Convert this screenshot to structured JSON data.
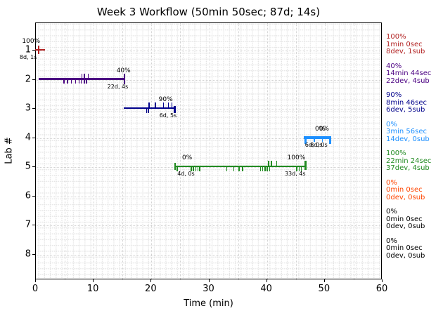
{
  "title": "Week 3 Workflow (50min 50sec; 87d; 14s)",
  "chart_data": {
    "type": "gantt",
    "title": "Week 3 Workflow (50min 50sec; 87d; 14s)",
    "xlabel": "Time (min)",
    "ylabel": "Lab #",
    "xlim": [
      0,
      60
    ],
    "x_ticks": [
      0,
      10,
      20,
      30,
      40,
      50,
      60
    ],
    "x_minor_step": 5,
    "y_labels": [
      1,
      2,
      3,
      4,
      5,
      6,
      7,
      8
    ],
    "grid": "fine dotted",
    "legend_position": "right of axes, one colored block per lab",
    "series": [
      {
        "lab": 1,
        "color": "#b22222",
        "start": 0,
        "end": 1.65,
        "thickness": 2.5,
        "caps": [
          {
            "x": 0.62,
            "up": 5,
            "down": 5,
            "w": 2.5
          }
        ],
        "ticks_up": [],
        "ticks_down": [],
        "annotations": [
          {
            "text": "100%",
            "x": -0.7,
            "side": "above"
          },
          {
            "text": "8d, 1s",
            "x": -1.2,
            "side": "below"
          }
        ]
      },
      {
        "lab": 2,
        "color": "#4b0082",
        "start": 0.6,
        "end": 15.5,
        "thickness": 2.5,
        "caps": [
          {
            "x": 15.45,
            "up": 6,
            "down": 6,
            "w": 2.5
          }
        ],
        "ticks_up": [
          8.0,
          8.4,
          9.1
        ],
        "ticks_down": [
          4.9,
          5.5,
          6.2,
          6.9,
          7.5,
          7.9,
          8.4,
          8.8
        ],
        "annotations": [
          {
            "text": "40%",
            "x": 15.3,
            "side": "above"
          },
          {
            "text": "22d, 4s",
            "x": 14.3,
            "side": "below"
          }
        ]
      },
      {
        "lab": 3,
        "color": "#00008b",
        "start": 15.3,
        "end": 24.2,
        "thickness": 2.5,
        "caps": [
          {
            "x": 24.15,
            "up": 2,
            "down": 6,
            "w": 2.5
          }
        ],
        "ticks_up": [
          19.6,
          20.7,
          22.1,
          23.0,
          23.6
        ],
        "ticks_down": [
          19.2,
          19.5
        ],
        "annotations": [
          {
            "text": "90%",
            "x": 22.6,
            "side": "above"
          },
          {
            "text": "6d, 5s",
            "x": 23.0,
            "side": "below"
          }
        ]
      },
      {
        "lab": 4,
        "color": "#1e90ff",
        "start": 46.5,
        "end": 51.2,
        "thickness": 4,
        "caps": [
          {
            "x": 46.75,
            "up": 0,
            "down": 7,
            "w": 3
          },
          {
            "x": 51.0,
            "up": 0,
            "down": 7,
            "w": 3
          }
        ],
        "ticks_up": [],
        "ticks_down": [
          48.2,
          49.6
        ],
        "annotations": [
          {
            "text": "0%",
            "x": 49.3,
            "side": "above"
          },
          {
            "text": "0%",
            "x": 50.0,
            "side": "above"
          },
          {
            "text": "6d, 0s",
            "x": 48.2,
            "side": "below"
          },
          {
            "text": "8d, 0s",
            "x": 49.1,
            "side": "below"
          }
        ]
      },
      {
        "lab": 5,
        "color": "#228b22",
        "start": 24.1,
        "end": 46.9,
        "thickness": 2.5,
        "caps": [
          {
            "x": 24.2,
            "up": 4,
            "down": 4,
            "w": 2
          },
          {
            "x": 46.8,
            "up": 7,
            "down": 4,
            "w": 2.5
          }
        ],
        "ticks_up": [
          40.3,
          40.8,
          41.7
        ],
        "ticks_down": [
          24.5,
          26.9,
          27.3,
          27.7,
          28.1,
          28.4,
          33.1,
          34.3,
          35.2,
          35.8,
          38.9,
          39.3,
          39.7,
          40.1,
          40.5,
          45.2,
          45.6,
          46.0
        ],
        "annotations": [
          {
            "text": "0%",
            "x": 26.3,
            "side": "above"
          },
          {
            "text": "4d, 0s",
            "x": 26.1,
            "side": "below"
          },
          {
            "text": "100%",
            "x": 45.2,
            "side": "above"
          },
          {
            "text": "33d, 4s",
            "x": 45.0,
            "side": "below"
          }
        ]
      },
      {
        "lab": 6,
        "color": "#ff4500",
        "start": null,
        "end": null,
        "thickness": 0,
        "caps": [],
        "ticks_up": [],
        "ticks_down": [],
        "annotations": []
      },
      {
        "lab": 7,
        "color": "#000000",
        "start": null,
        "end": null,
        "thickness": 0,
        "caps": [],
        "ticks_up": [],
        "ticks_down": [],
        "annotations": []
      },
      {
        "lab": 8,
        "color": "#000000",
        "start": null,
        "end": null,
        "thickness": 0,
        "caps": [],
        "ticks_up": [],
        "ticks_down": [],
        "annotations": []
      }
    ]
  },
  "legend": [
    {
      "percent": "100%",
      "time": "1min 0sec",
      "devsub": "8dev, 1sub",
      "color": "#b22222"
    },
    {
      "percent": "40%",
      "time": "14min 44sec",
      "devsub": "22dev, 4sub",
      "color": "#4b0082"
    },
    {
      "percent": "90%",
      "time": "8min 46sec",
      "devsub": "6dev, 5sub",
      "color": "#00008b"
    },
    {
      "percent": "0%",
      "time": "3min 56sec",
      "devsub": "14dev, 0sub",
      "color": "#1e90ff"
    },
    {
      "percent": "100%",
      "time": "22min 24sec",
      "devsub": "37dev, 4sub",
      "color": "#228b22"
    },
    {
      "percent": "0%",
      "time": "0min 0sec",
      "devsub": "0dev, 0sub",
      "color": "#ff4500"
    },
    {
      "percent": "0%",
      "time": "0min 0sec",
      "devsub": "0dev, 0sub",
      "color": "#000000"
    },
    {
      "percent": "0%",
      "time": "0min 0sec",
      "devsub": "0dev, 0sub",
      "color": "#000000"
    }
  ]
}
